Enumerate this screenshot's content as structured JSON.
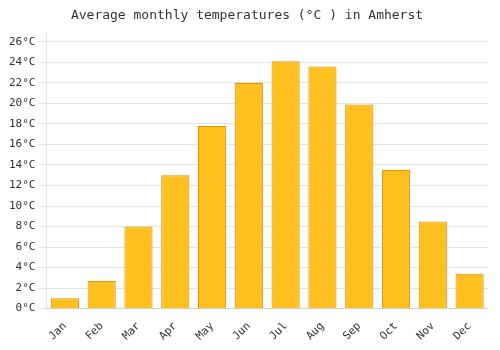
{
  "chart_data": {
    "type": "bar",
    "title": "Average monthly temperatures (°C ) in Amherst",
    "categories": [
      "Jan",
      "Feb",
      "Mar",
      "Apr",
      "May",
      "Jun",
      "Jul",
      "Aug",
      "Sep",
      "Oct",
      "Nov",
      "Dec"
    ],
    "values": [
      1.0,
      2.7,
      8.0,
      13.0,
      17.8,
      22.0,
      24.1,
      23.6,
      19.9,
      13.5,
      8.5,
      3.4
    ],
    "color": "#FFC020",
    "ylim": [
      0,
      27
    ],
    "yticks": [
      {
        "value": 0,
        "label": "0°C"
      },
      {
        "value": 2,
        "label": "2°C"
      },
      {
        "value": 4,
        "label": "4°C"
      },
      {
        "value": 6,
        "label": "6°C"
      },
      {
        "value": 8,
        "label": "8°C"
      },
      {
        "value": 10,
        "label": "10°C"
      },
      {
        "value": 12,
        "label": "12°C"
      },
      {
        "value": 14,
        "label": "14°C"
      },
      {
        "value": 16,
        "label": "16°C"
      },
      {
        "value": 18,
        "label": "18°C"
      },
      {
        "value": 20,
        "label": "20°C"
      },
      {
        "value": 22,
        "label": "22°C"
      },
      {
        "value": 24,
        "label": "24°C"
      },
      {
        "value": 26,
        "label": "26°C"
      }
    ],
    "grid": true
  }
}
